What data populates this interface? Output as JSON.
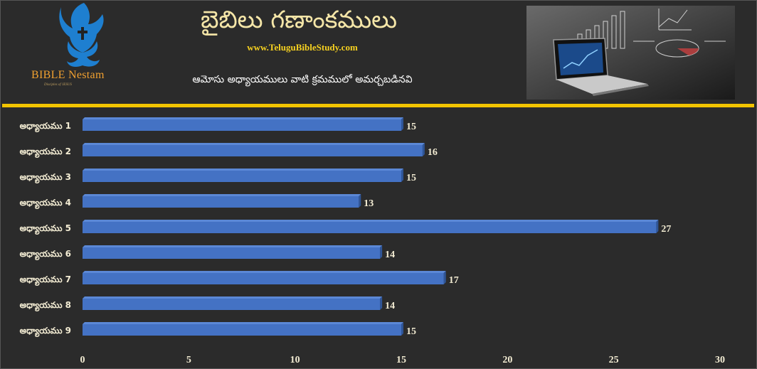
{
  "header": {
    "logo_text": "BIBLE Nestam",
    "logo_tagline": "Disciples of JESUS",
    "title": "బైబిలు గణాంకములు",
    "website": "www.TeluguBibleStudy.com",
    "subtitle": "ఆమోసు అధ్యాయములు వాటి క్రమములో అమర్చబడినవి",
    "logo_icon": "dove-cross-hands-icon",
    "photo_icon": "laptop-analytics-photo"
  },
  "colors": {
    "background": "#2b2b2b",
    "bar": "#4472c4",
    "bar_top": "#5b88d6",
    "rule": "#f2c400",
    "text": "#f3ecd3"
  },
  "chart_data": {
    "type": "bar",
    "orientation": "horizontal",
    "categories": [
      "అధ్యాయము 1",
      "అధ్యాయము 2",
      "అధ్యాయము 3",
      "అధ్యాయము 4",
      "అధ్యాయము 5",
      "అధ్యాయము 6",
      "అధ్యాయము 7",
      "అధ్యాయము 8",
      "అధ్యాయము 9"
    ],
    "values": [
      15,
      16,
      15,
      13,
      27,
      14,
      17,
      14,
      15
    ],
    "xlim": [
      0,
      30
    ],
    "xticks": [
      0,
      5,
      10,
      15,
      20,
      25,
      30
    ],
    "grid": false,
    "legend": "none"
  }
}
